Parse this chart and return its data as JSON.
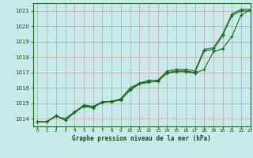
{
  "title": "Graphe pression niveau de la mer (hPa)",
  "bg_color": "#c8eaea",
  "grid_color": "#b0c8c8",
  "line_color": "#1a6b1a",
  "xlim": [
    -0.5,
    23
  ],
  "ylim": [
    1013.5,
    1021.5
  ],
  "yticks": [
    1014,
    1015,
    1016,
    1017,
    1018,
    1019,
    1020,
    1021
  ],
  "xticks": [
    0,
    1,
    2,
    3,
    4,
    5,
    6,
    7,
    8,
    9,
    10,
    11,
    12,
    13,
    14,
    15,
    16,
    17,
    18,
    19,
    20,
    21,
    22,
    23
  ],
  "series": [
    [
      1013.8,
      1013.8,
      1014.2,
      1013.9,
      1014.4,
      1014.8,
      1014.7,
      1015.1,
      1015.1,
      1015.2,
      1015.9,
      1016.3,
      1016.4,
      1016.4,
      1017.0,
      1017.1,
      1017.1,
      1017.0,
      1018.4,
      1018.5,
      1019.4,
      1020.7,
      1021.0,
      1021.0
    ],
    [
      1013.8,
      1013.8,
      1014.15,
      1014.0,
      1014.45,
      1014.85,
      1014.75,
      1015.05,
      1015.15,
      1015.25,
      1015.85,
      1016.25,
      1016.35,
      1016.45,
      1016.95,
      1017.05,
      1017.05,
      1016.95,
      1017.2,
      1018.35,
      1018.55,
      1019.35,
      1020.75,
      1021.05
    ],
    [
      1013.8,
      1013.8,
      1014.2,
      1013.9,
      1014.4,
      1014.9,
      1014.8,
      1015.1,
      1015.1,
      1015.3,
      1016.0,
      1016.3,
      1016.5,
      1016.5,
      1017.1,
      1017.2,
      1017.2,
      1017.1,
      1018.5,
      1018.6,
      1019.5,
      1020.8,
      1021.1,
      1021.1
    ]
  ]
}
